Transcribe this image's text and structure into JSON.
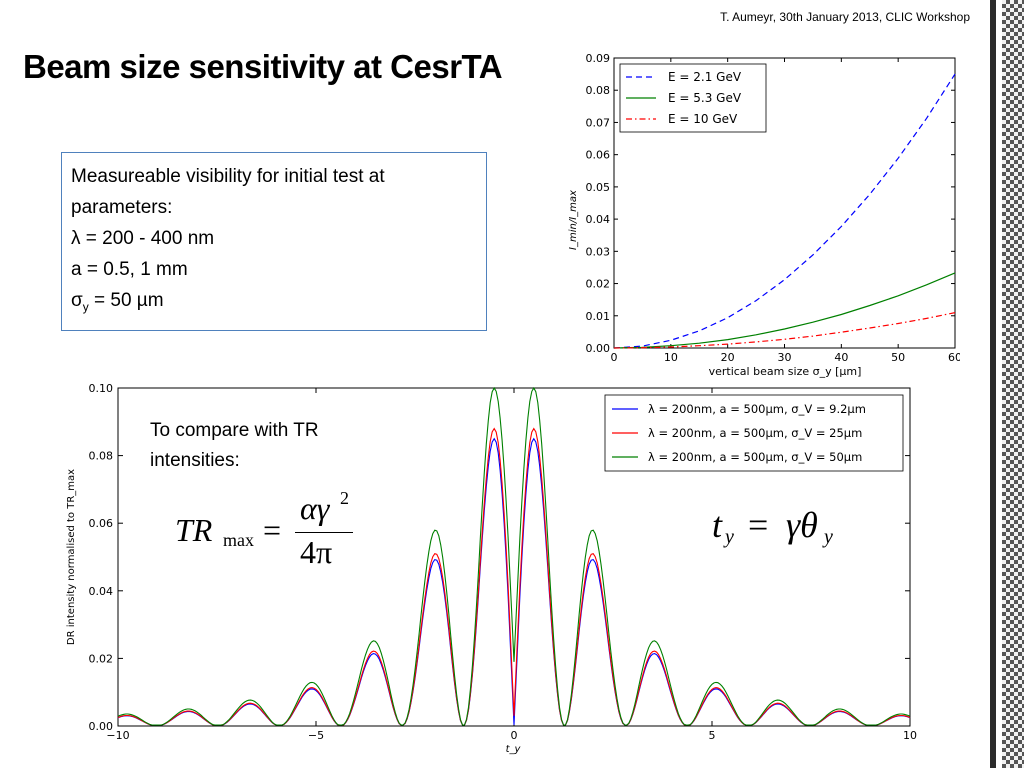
{
  "header": {
    "text": "T. Aumeyr, 30th January 2013, CLIC Workshop"
  },
  "title": "Beam size sensitivity at CesrTA",
  "infobox": {
    "line1": "Measureable visibility for initial test at",
    "line2": "parameters:",
    "line3": "λ = 200 - 400 nm",
    "line4": "a = 0.5, 1 mm",
    "line5_prefix": "σ",
    "line5_sub": "y",
    "line5_suffix": " = 50 µm"
  },
  "annotation": {
    "line1": "To compare with TR",
    "line2": "intensities:"
  },
  "equations": {
    "trmax": {
      "lhs": "TR",
      "lhs_sub": "max",
      "eq": "=",
      "num": "αγ",
      "num_sup": "2",
      "den": "4π"
    },
    "ty": {
      "lhs": "t",
      "lhs_sub": "y",
      "eq": "=",
      "rhs": "γθ",
      "rhs_sub": "y"
    }
  },
  "colors": {
    "blue": "#0000ff",
    "green": "#008000",
    "red": "#ff0000",
    "box_border": "#4f81bd"
  },
  "chart_data": [
    {
      "type": "line",
      "ylabel": "I_min/I_max",
      "xlabel": "vertical beam size σ_y [µm]",
      "xlim": [
        0,
        60
      ],
      "ylim": [
        0,
        0.09
      ],
      "xticks": [
        "0",
        "10",
        "20",
        "30",
        "40",
        "50",
        "60"
      ],
      "yticks": [
        "0.00",
        "0.01",
        "0.02",
        "0.03",
        "0.04",
        "0.05",
        "0.06",
        "0.07",
        "0.08",
        "0.09"
      ],
      "legend_position": "top-left",
      "x": [
        0,
        5,
        10,
        15,
        20,
        25,
        30,
        35,
        40,
        45,
        50,
        55,
        60
      ],
      "series": [
        {
          "name": "E = 2.1 GeV",
          "color": "#0000ff",
          "style": "dashed",
          "values": [
            0,
            0.0006,
            0.0024,
            0.0053,
            0.0094,
            0.0147,
            0.0212,
            0.0289,
            0.0377,
            0.0477,
            0.0589,
            0.0713,
            0.085
          ]
        },
        {
          "name": "E = 5.3 GeV",
          "color": "#008000",
          "style": "solid",
          "values": [
            0,
            0.0002,
            0.0007,
            0.0015,
            0.0026,
            0.0041,
            0.0059,
            0.008,
            0.0104,
            0.0132,
            0.0162,
            0.0196,
            0.0233
          ]
        },
        {
          "name": "E = 10 GeV",
          "color": "#ff0000",
          "style": "dashdot",
          "values": [
            0,
            0.0001,
            0.0003,
            0.0007,
            0.0012,
            0.0019,
            0.0027,
            0.0037,
            0.0049,
            0.0062,
            0.0076,
            0.0092,
            0.011
          ]
        }
      ]
    },
    {
      "type": "line",
      "ylabel": "DR intensity normalised to TR_max",
      "xlabel": "t_y",
      "xlim": [
        -10,
        10
      ],
      "ylim": [
        0,
        0.1
      ],
      "xticks": [
        "−10",
        "−5",
        "0",
        "5",
        "10"
      ],
      "yticks": [
        "0.00",
        "0.02",
        "0.04",
        "0.06",
        "0.08",
        "0.10"
      ],
      "legend_position": "top-right",
      "series": [
        {
          "name": "λ = 200nm, a = 500µm, σ_V = 9.2µm",
          "color": "#0000ff",
          "peak": 0.085,
          "center": 0.0
        },
        {
          "name": "λ = 200nm, a = 500µm, σ_V = 25µm",
          "color": "#ff0000",
          "peak": 0.088,
          "center": 0.003
        },
        {
          "name": "λ = 200nm, a = 500µm, σ_V = 50µm",
          "color": "#008000",
          "peak": 0.1,
          "center": 0.019
        }
      ]
    }
  ]
}
